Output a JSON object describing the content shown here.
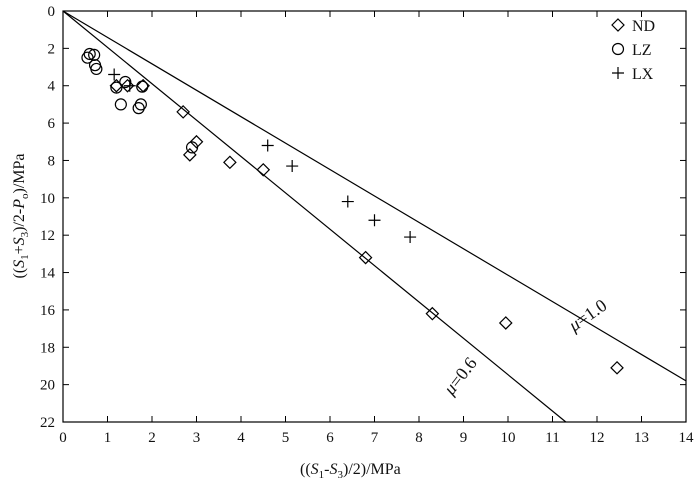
{
  "chart_data": {
    "type": "scatter",
    "xlabel": "((S1-S3)/2)/MPa",
    "ylabel": "((S1+S3)/2-Po)/MPa",
    "xlim": [
      0,
      14
    ],
    "ylim": [
      0,
      22
    ],
    "y_inverted": true,
    "x_axis_position": "top",
    "x_ticks": [
      0,
      1,
      2,
      3,
      4,
      5,
      6,
      7,
      8,
      9,
      10,
      11,
      12,
      13,
      14
    ],
    "y_ticks": [
      0,
      2,
      4,
      6,
      8,
      10,
      12,
      14,
      16,
      18,
      20,
      22
    ],
    "grid": false,
    "legend_position": "top-right",
    "series": [
      {
        "name": "ND",
        "marker": "diamond",
        "points": [
          [
            1.2,
            4.0
          ],
          [
            1.45,
            4.0
          ],
          [
            1.8,
            4.0
          ],
          [
            2.7,
            5.4
          ],
          [
            3.0,
            7.0
          ],
          [
            2.85,
            7.7
          ],
          [
            3.75,
            8.1
          ],
          [
            4.5,
            8.5
          ],
          [
            6.8,
            13.2
          ],
          [
            8.3,
            16.2
          ],
          [
            9.95,
            16.7
          ],
          [
            12.45,
            19.1
          ]
        ]
      },
      {
        "name": "LZ",
        "marker": "circle",
        "points": [
          [
            0.55,
            2.5
          ],
          [
            0.6,
            2.3
          ],
          [
            0.7,
            2.35
          ],
          [
            0.72,
            2.9
          ],
          [
            0.75,
            3.1
          ],
          [
            1.2,
            4.1
          ],
          [
            1.3,
            5.0
          ],
          [
            1.4,
            3.8
          ],
          [
            1.7,
            5.2
          ],
          [
            1.75,
            5.0
          ],
          [
            1.78,
            4.05
          ],
          [
            2.9,
            7.3
          ]
        ]
      },
      {
        "name": "LX",
        "marker": "plus",
        "points": [
          [
            1.15,
            3.4
          ],
          [
            1.5,
            4.0
          ],
          [
            4.6,
            7.2
          ],
          [
            5.15,
            8.3
          ],
          [
            6.4,
            10.2
          ],
          [
            7.0,
            11.2
          ],
          [
            7.8,
            12.1
          ]
        ]
      }
    ],
    "lines": [
      {
        "label": "μ=1.0",
        "from": [
          0,
          0
        ],
        "to": [
          14,
          19.8
        ]
      },
      {
        "label": "μ=0.6",
        "from": [
          0,
          0
        ],
        "to": [
          11.3,
          22
        ]
      }
    ]
  }
}
